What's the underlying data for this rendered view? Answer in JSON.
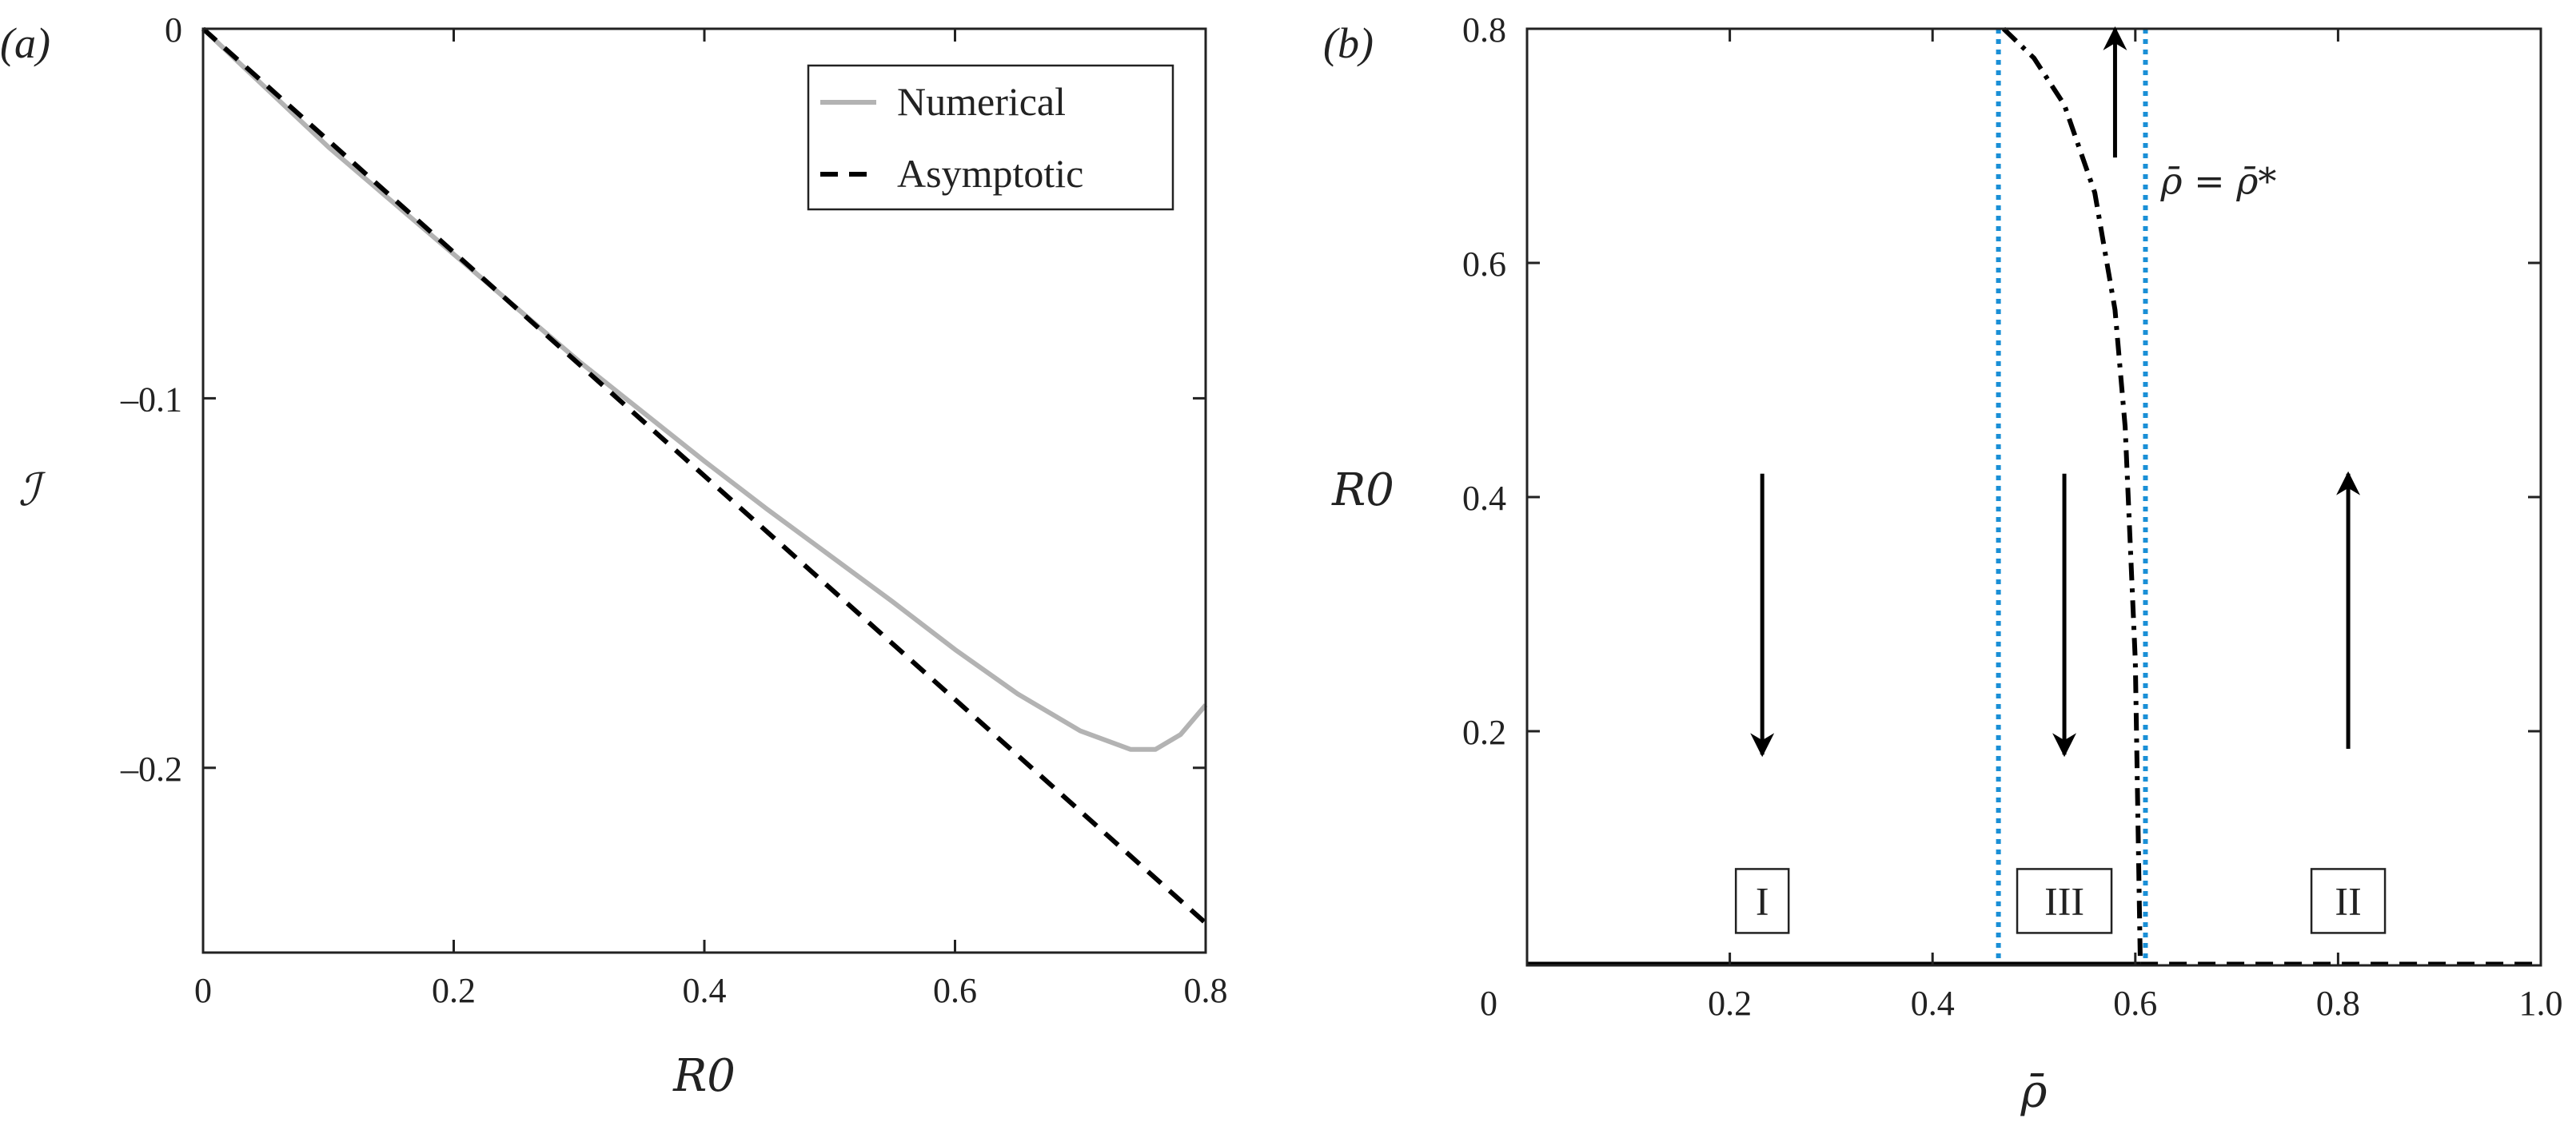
{
  "chart_data": [
    {
      "type": "line",
      "panel_label": "(a)",
      "xlabel": "R0",
      "ylabel": "ℐ",
      "xlim": [
        0,
        0.8
      ],
      "ylim": [
        -0.25,
        0
      ],
      "xticks": [
        0,
        0.2,
        0.4,
        0.6,
        0.8
      ],
      "xtick_labels": [
        "0",
        "0.2",
        "0.4",
        "0.6",
        "0.8"
      ],
      "yticks": [
        0,
        -0.1,
        -0.2
      ],
      "ytick_labels": [
        "0",
        "–0.1",
        "–0.2"
      ],
      "grid": false,
      "legend": "top-right",
      "series": [
        {
          "name": "Numerical",
          "color": "#b3b3b3",
          "style": "solid",
          "x": [
            0,
            0.1,
            0.2,
            0.3,
            0.4,
            0.45,
            0.5,
            0.55,
            0.6,
            0.65,
            0.7,
            0.74,
            0.76,
            0.78,
            0.8
          ],
          "y": [
            0,
            -0.032,
            -0.061,
            -0.09,
            -0.117,
            -0.13,
            -0.1425,
            -0.155,
            -0.168,
            -0.18,
            -0.19,
            -0.195,
            -0.195,
            -0.191,
            -0.183
          ]
        },
        {
          "name": "Asymptotic",
          "color": "#000000",
          "style": "dashed",
          "x": [
            0,
            0.8
          ],
          "y": [
            0,
            -0.242
          ]
        }
      ]
    },
    {
      "type": "line",
      "panel_label": "(b)",
      "xlabel": "ρ̄",
      "ylabel": "R0",
      "xlim": [
        0,
        1.0
      ],
      "ylim": [
        0,
        0.8
      ],
      "xticks": [
        0,
        0.2,
        0.4,
        0.6,
        0.8,
        1.0
      ],
      "xtick_labels": [
        "0",
        "0.2",
        "0.4",
        "0.6",
        "0.8",
        "1.0"
      ],
      "yticks": [
        0.2,
        0.4,
        0.6,
        0.8
      ],
      "ytick_labels": [
        "0.2",
        "0.4",
        "0.6",
        "0.8"
      ],
      "grid": false,
      "vlines": [
        {
          "x": 0.465,
          "color": "#1a8fd6",
          "style": "dotted"
        },
        {
          "x": 0.61,
          "color": "#1a8fd6",
          "style": "dotted"
        }
      ],
      "series": [
        {
          "color": "#000000",
          "style": "solid",
          "x": [
            0,
            0.605
          ],
          "y": [
            0.001,
            0.001
          ]
        },
        {
          "color": "#000000",
          "style": "dashed",
          "x": [
            0.605,
            1.0
          ],
          "y": [
            0.001,
            0.001
          ]
        },
        {
          "color": "#000000",
          "style": "dashdot",
          "x": [
            0.47,
            0.5,
            0.53,
            0.56,
            0.58,
            0.59,
            0.6,
            0.605
          ],
          "y": [
            0.8,
            0.775,
            0.735,
            0.66,
            0.56,
            0.46,
            0.26,
            0.0
          ]
        }
      ],
      "arrows": [
        {
          "x": 0.232,
          "y_from": 0.42,
          "y_to": 0.18
        },
        {
          "x": 0.53,
          "y_from": 0.42,
          "y_to": 0.18
        },
        {
          "x": 0.58,
          "y_from": 0.69,
          "y_to": 0.8
        },
        {
          "x": 0.81,
          "y_from": 0.185,
          "y_to": 0.42
        }
      ],
      "regions": [
        {
          "label": "I",
          "x": 0.232,
          "y": 0.055
        },
        {
          "label": "III",
          "x": 0.53,
          "y": 0.055
        },
        {
          "label": "II",
          "x": 0.81,
          "y": 0.055
        }
      ],
      "annotation": {
        "text": "ρ̄ = ρ̄*",
        "x": 0.625,
        "y": 0.67
      }
    }
  ]
}
